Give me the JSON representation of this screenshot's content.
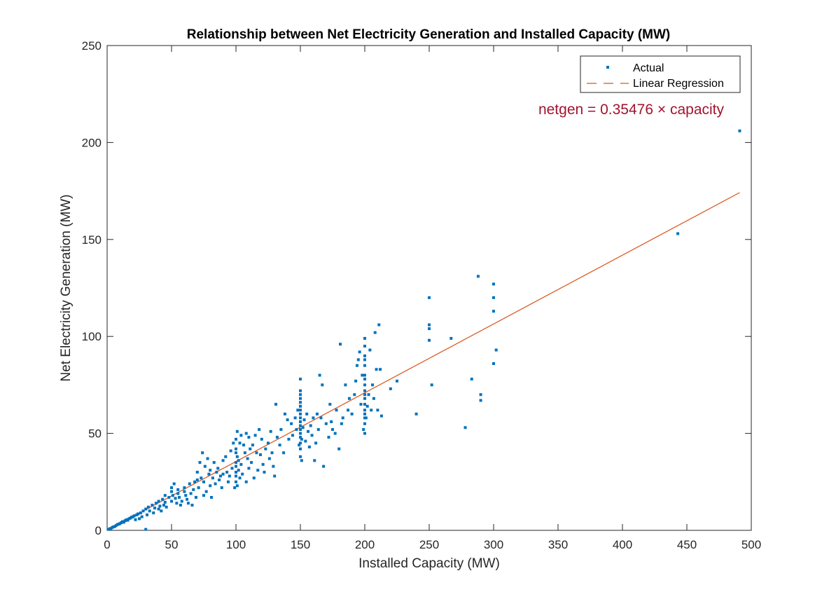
{
  "chart_data": {
    "type": "scatter",
    "title": "Relationship between Net Electricity Generation and Installed Capacity (MW)",
    "xlabel": "Installed Capacity (MW)",
    "ylabel": "Net Electricity Generation (MW)",
    "xlim": [
      0,
      500
    ],
    "ylim": [
      0,
      250
    ],
    "xticks": [
      "0",
      "50",
      "100",
      "150",
      "200",
      "250",
      "300",
      "350",
      "400",
      "450",
      "500"
    ],
    "yticks": [
      "0",
      "50",
      "100",
      "150",
      "200",
      "250"
    ],
    "grid": false,
    "legend_position": "top-right",
    "colors": {
      "actual": "#0072BD",
      "regression": "#D95319",
      "annotation": "#A2142F"
    },
    "series": [
      {
        "name": "Actual",
        "kind": "scatter",
        "points": [
          [
            1,
            0.5
          ],
          [
            2,
            0.8
          ],
          [
            3,
            1
          ],
          [
            4,
            1.5
          ],
          [
            5,
            1.8
          ],
          [
            6,
            2
          ],
          [
            7,
            2.5
          ],
          [
            8,
            3
          ],
          [
            9,
            3.2
          ],
          [
            10,
            3.5
          ],
          [
            11,
            4
          ],
          [
            12,
            4.5
          ],
          [
            13,
            4.2
          ],
          [
            14,
            5
          ],
          [
            15,
            5.5
          ],
          [
            16,
            5.2
          ],
          [
            17,
            6
          ],
          [
            18,
            6.3
          ],
          [
            19,
            6.8
          ],
          [
            20,
            7
          ],
          [
            21,
            7.5
          ],
          [
            22,
            5.5
          ],
          [
            23,
            8
          ],
          [
            24,
            8.5
          ],
          [
            25,
            6
          ],
          [
            26,
            9
          ],
          [
            27,
            7
          ],
          [
            28,
            10
          ],
          [
            30,
            11
          ],
          [
            30,
            0.5
          ],
          [
            31,
            8
          ],
          [
            32,
            12
          ],
          [
            33,
            10
          ],
          [
            35,
            13
          ],
          [
            36,
            9
          ],
          [
            37,
            11.5
          ],
          [
            38,
            14
          ],
          [
            40,
            15
          ],
          [
            40,
            11
          ],
          [
            41,
            12.5
          ],
          [
            42,
            10
          ],
          [
            43,
            16
          ],
          [
            44,
            13
          ],
          [
            45,
            18
          ],
          [
            45,
            14.5
          ],
          [
            46,
            12
          ],
          [
            48,
            17
          ],
          [
            50,
            20
          ],
          [
            50,
            15
          ],
          [
            50,
            22
          ],
          [
            51,
            18
          ],
          [
            52,
            24
          ],
          [
            53,
            16.5
          ],
          [
            54,
            14
          ],
          [
            55,
            19
          ],
          [
            55,
            21
          ],
          [
            56,
            17
          ],
          [
            57,
            13
          ],
          [
            58,
            15
          ],
          [
            60,
            20
          ],
          [
            60,
            22
          ],
          [
            61,
            18
          ],
          [
            62,
            16
          ],
          [
            63,
            14
          ],
          [
            64,
            24
          ],
          [
            65,
            19
          ],
          [
            66,
            13
          ],
          [
            67,
            21
          ],
          [
            68,
            25
          ],
          [
            69,
            17
          ],
          [
            70,
            26
          ],
          [
            70,
            30
          ],
          [
            71,
            22
          ],
          [
            72,
            35
          ],
          [
            73,
            27
          ],
          [
            74,
            40
          ],
          [
            75,
            18
          ],
          [
            75,
            25
          ],
          [
            76,
            33
          ],
          [
            77,
            20
          ],
          [
            78,
            37
          ],
          [
            79,
            29
          ],
          [
            80,
            31
          ],
          [
            80,
            23
          ],
          [
            81,
            17
          ],
          [
            82,
            27
          ],
          [
            83,
            35
          ],
          [
            84,
            24
          ],
          [
            85,
            30
          ],
          [
            86,
            32
          ],
          [
            87,
            26
          ],
          [
            88,
            28
          ],
          [
            89,
            22
          ],
          [
            90,
            36
          ],
          [
            90,
            29
          ],
          [
            92,
            38
          ],
          [
            93,
            30
          ],
          [
            94,
            25
          ],
          [
            95,
            28
          ],
          [
            96,
            41
          ],
          [
            97,
            32
          ],
          [
            98,
            45
          ],
          [
            99,
            22
          ],
          [
            100,
            25
          ],
          [
            100,
            30
          ],
          [
            100,
            35
          ],
          [
            100,
            40
          ],
          [
            100,
            47
          ],
          [
            100,
            33
          ],
          [
            100,
            28
          ],
          [
            100,
            42
          ],
          [
            101,
            38
          ],
          [
            101,
            51
          ],
          [
            101,
            23
          ],
          [
            102,
            36
          ],
          [
            102,
            31
          ],
          [
            103,
            45
          ],
          [
            103,
            27
          ],
          [
            104,
            49
          ],
          [
            104,
            34
          ],
          [
            105,
            29
          ],
          [
            106,
            44
          ],
          [
            107,
            40
          ],
          [
            108,
            50
          ],
          [
            108,
            25
          ],
          [
            109,
            37
          ],
          [
            110,
            48
          ],
          [
            110,
            32
          ],
          [
            111,
            42
          ],
          [
            112,
            35
          ],
          [
            113,
            44
          ],
          [
            114,
            27
          ],
          [
            115,
            49
          ],
          [
            116,
            40
          ],
          [
            117,
            31
          ],
          [
            118,
            52
          ],
          [
            119,
            39
          ],
          [
            120,
            47
          ],
          [
            121,
            34
          ],
          [
            122,
            30
          ],
          [
            123,
            42
          ],
          [
            125,
            45
          ],
          [
            126,
            37
          ],
          [
            127,
            51
          ],
          [
            128,
            40
          ],
          [
            129,
            33
          ],
          [
            130,
            28
          ],
          [
            131,
            65
          ],
          [
            132,
            48
          ],
          [
            134,
            44
          ],
          [
            135,
            52
          ],
          [
            137,
            40
          ],
          [
            138,
            60
          ],
          [
            140,
            57
          ],
          [
            141,
            47
          ],
          [
            143,
            55
          ],
          [
            144,
            49
          ],
          [
            146,
            58
          ],
          [
            147,
            52
          ],
          [
            148,
            62
          ],
          [
            149,
            44
          ],
          [
            150,
            38
          ],
          [
            150,
            42
          ],
          [
            150,
            45
          ],
          [
            150,
            48
          ],
          [
            150,
            50
          ],
          [
            150,
            52
          ],
          [
            150,
            54
          ],
          [
            150,
            56
          ],
          [
            150,
            58
          ],
          [
            150,
            60
          ],
          [
            150,
            62
          ],
          [
            150,
            64
          ],
          [
            150,
            66
          ],
          [
            150,
            68
          ],
          [
            150,
            70
          ],
          [
            150,
            72
          ],
          [
            150,
            78
          ],
          [
            151,
            36
          ],
          [
            151,
            47
          ],
          [
            152,
            53
          ],
          [
            153,
            57
          ],
          [
            154,
            46
          ],
          [
            155,
            60
          ],
          [
            156,
            51
          ],
          [
            157,
            43
          ],
          [
            158,
            54
          ],
          [
            159,
            49
          ],
          [
            160,
            58
          ],
          [
            161,
            36
          ],
          [
            162,
            45
          ],
          [
            163,
            60
          ],
          [
            164,
            52
          ],
          [
            165,
            80
          ],
          [
            166,
            58
          ],
          [
            167,
            75
          ],
          [
            168,
            33
          ],
          [
            170,
            55
          ],
          [
            172,
            48
          ],
          [
            173,
            65
          ],
          [
            174,
            56
          ],
          [
            175,
            52
          ],
          [
            177,
            50
          ],
          [
            178,
            62
          ],
          [
            180,
            42
          ],
          [
            181,
            96
          ],
          [
            182,
            55
          ],
          [
            183,
            58
          ],
          [
            185,
            75
          ],
          [
            187,
            62
          ],
          [
            188,
            68
          ],
          [
            190,
            60
          ],
          [
            192,
            70
          ],
          [
            193,
            77
          ],
          [
            194,
            85
          ],
          [
            195,
            88
          ],
          [
            196,
            92
          ],
          [
            197,
            65
          ],
          [
            198,
            80
          ],
          [
            199,
            52
          ],
          [
            200,
            50
          ],
          [
            200,
            55
          ],
          [
            200,
            58
          ],
          [
            200,
            60
          ],
          [
            200,
            62
          ],
          [
            200,
            65
          ],
          [
            200,
            68
          ],
          [
            200,
            70
          ],
          [
            200,
            72
          ],
          [
            200,
            75
          ],
          [
            200,
            78
          ],
          [
            200,
            80
          ],
          [
            200,
            85
          ],
          [
            200,
            88
          ],
          [
            200,
            90
          ],
          [
            200,
            95
          ],
          [
            200,
            99
          ],
          [
            201,
            58
          ],
          [
            202,
            64
          ],
          [
            203,
            70
          ],
          [
            204,
            93
          ],
          [
            205,
            62
          ],
          [
            206,
            75
          ],
          [
            207,
            68
          ],
          [
            208,
            102
          ],
          [
            209,
            83
          ],
          [
            210,
            62
          ],
          [
            211,
            106
          ],
          [
            212,
            83
          ],
          [
            213,
            59
          ],
          [
            220,
            73
          ],
          [
            225,
            77
          ],
          [
            240,
            60
          ],
          [
            250,
            120
          ],
          [
            250,
            104
          ],
          [
            250,
            106
          ],
          [
            250,
            98
          ],
          [
            252,
            75
          ],
          [
            267,
            99
          ],
          [
            278,
            53
          ],
          [
            283,
            78
          ],
          [
            288,
            131
          ],
          [
            290,
            70
          ],
          [
            290,
            67
          ],
          [
            300,
            127
          ],
          [
            300,
            120
          ],
          [
            300,
            113
          ],
          [
            300,
            86
          ],
          [
            302,
            93
          ],
          [
            443,
            153
          ],
          [
            491,
            206
          ]
        ]
      },
      {
        "name": "Linear Regression",
        "kind": "line",
        "slope": 0.35476,
        "x": [
          0,
          491
        ]
      }
    ],
    "annotations": [
      {
        "text": "netgen = 0.35476 × capacity"
      }
    ]
  }
}
